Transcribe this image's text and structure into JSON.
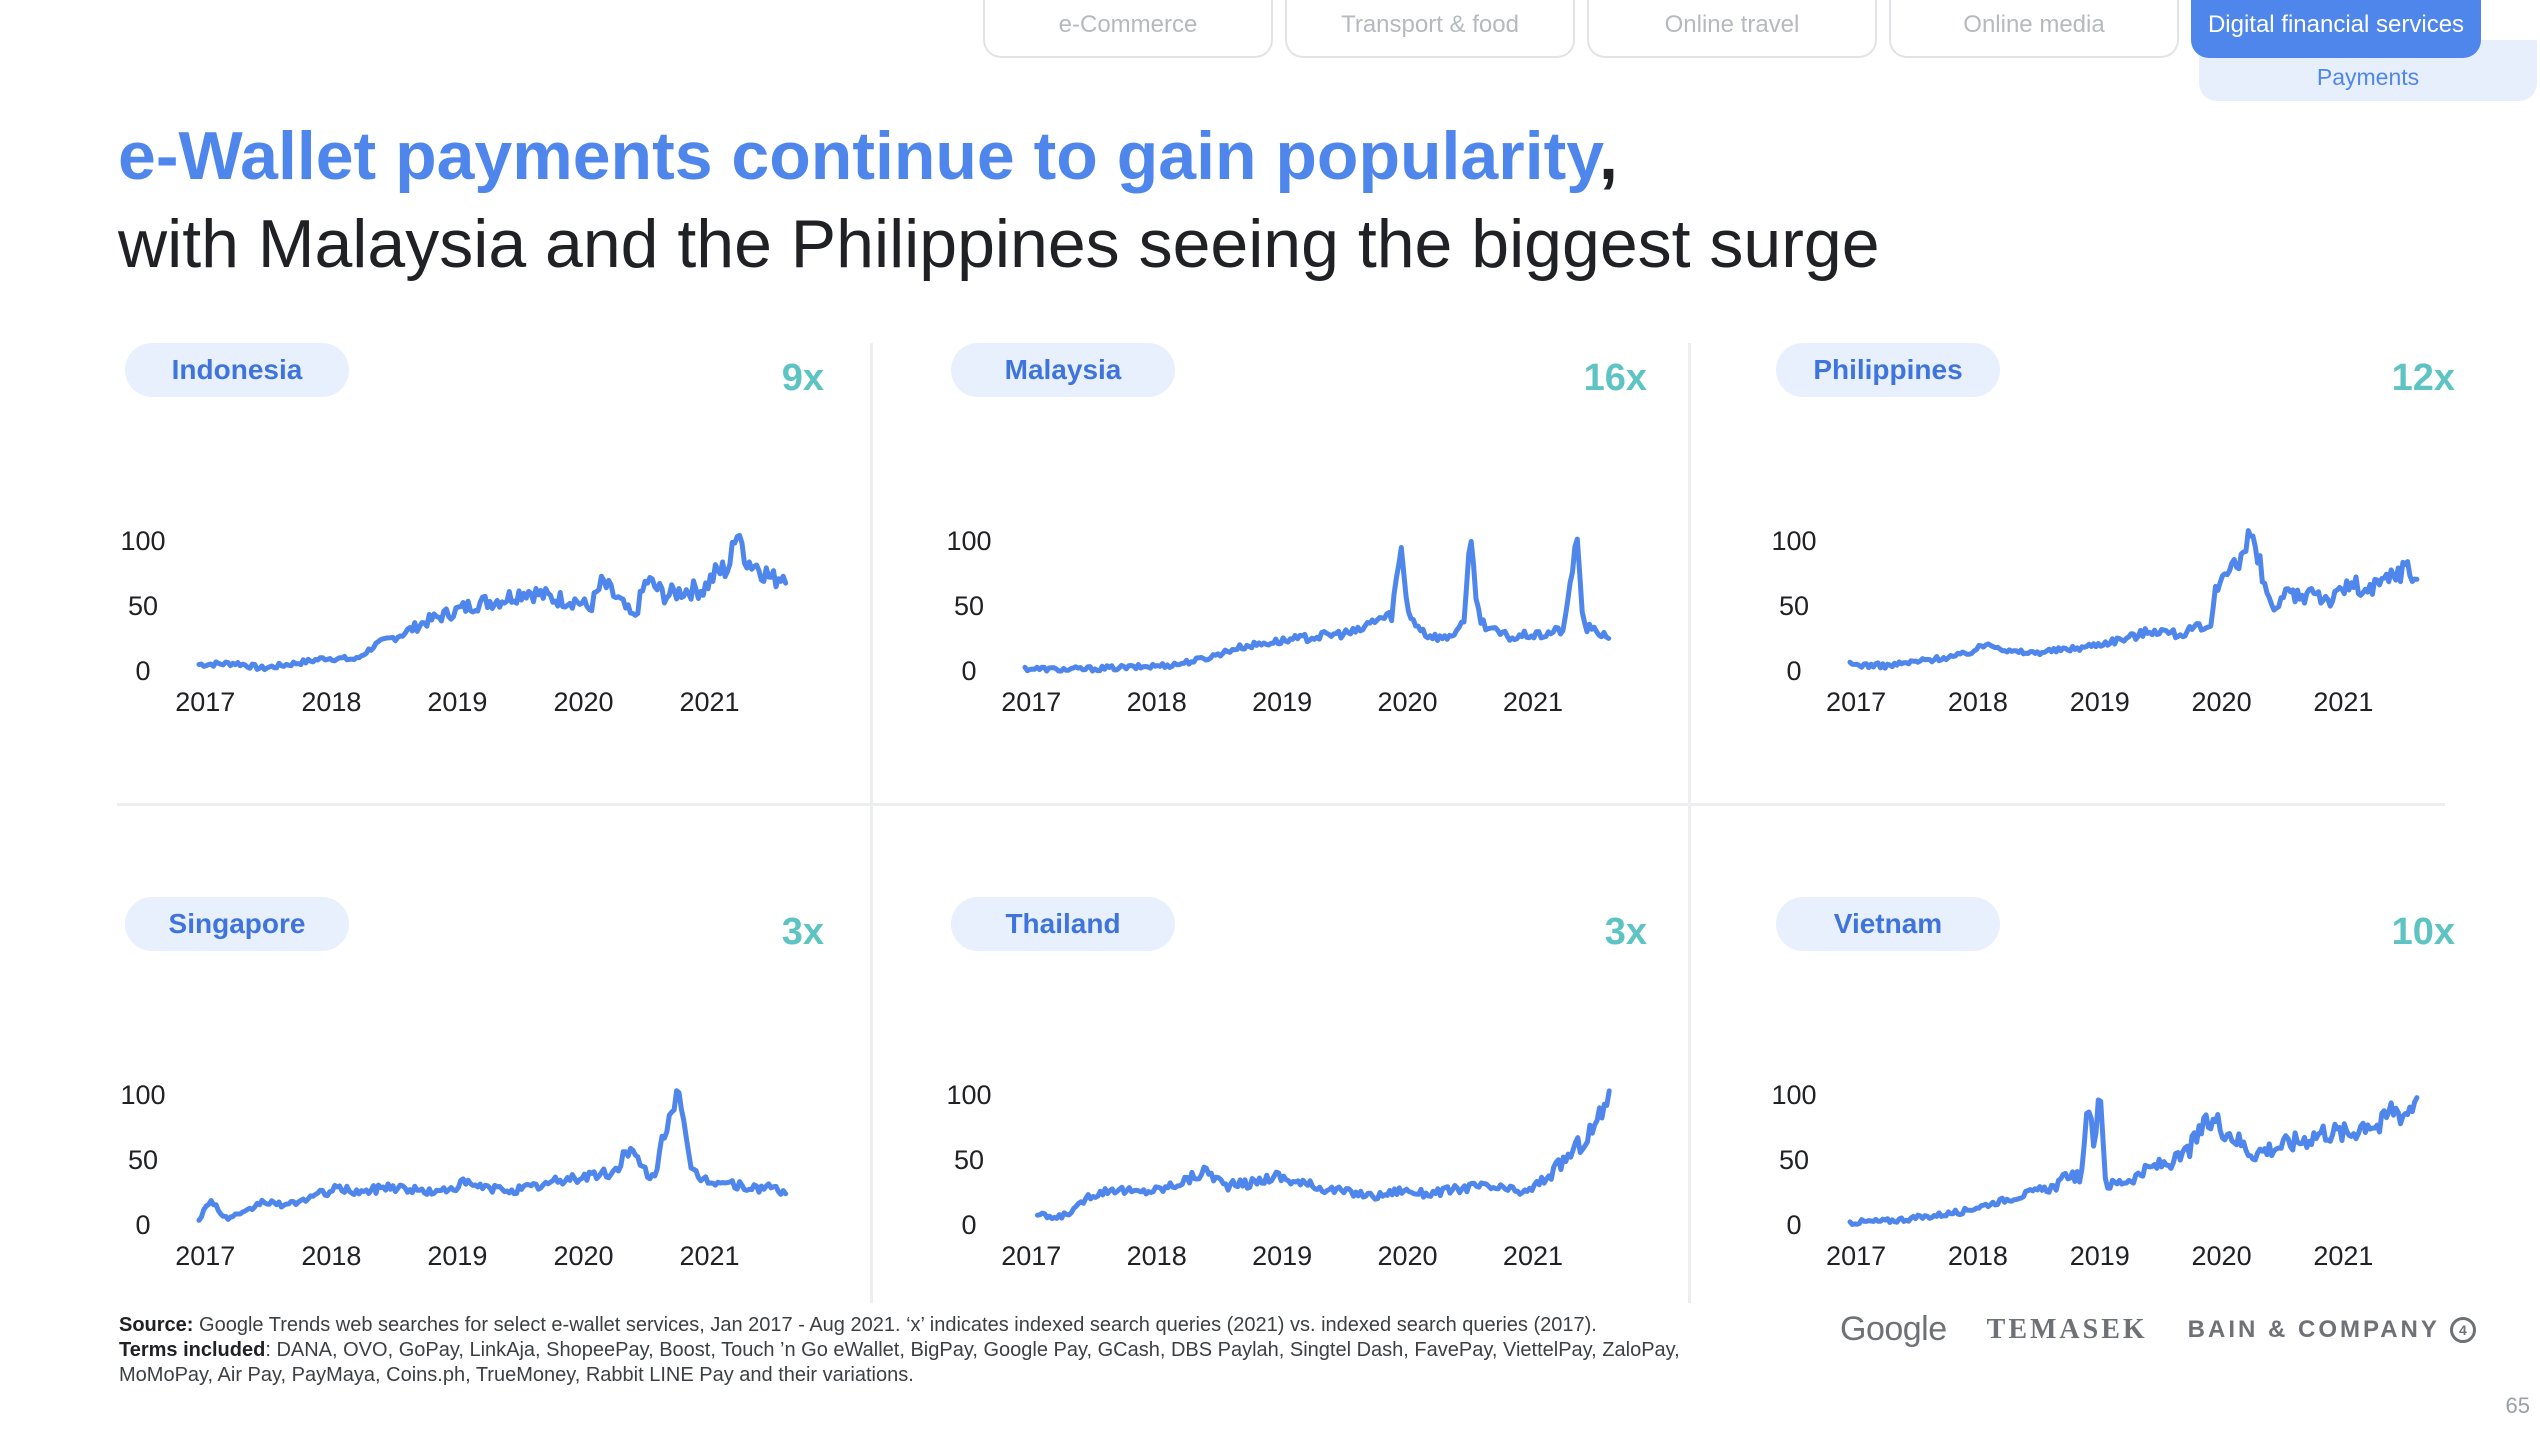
{
  "nav": {
    "tabs": [
      {
        "label": "e-Commerce"
      },
      {
        "label": "Transport & food"
      },
      {
        "label": "Online travel"
      },
      {
        "label": "Online media"
      },
      {
        "label": "Digital financial services"
      }
    ],
    "active_index": 4,
    "subtab_label": "Payments"
  },
  "title": {
    "highlight": "e-Wallet payments continue to gain popularity",
    "comma": ",",
    "line2": "with Malaysia and the Philippines seeing the biggest surge"
  },
  "colors": {
    "accent": "#4f86ec",
    "growth": "#5ec3c3",
    "pill_bg": "#e8f0fd"
  },
  "chart_data": [
    {
      "type": "line",
      "country": "Indonesia",
      "growth": "9x",
      "ylim": [
        0,
        100
      ],
      "yticks": [
        0,
        50,
        100
      ],
      "xticks": [
        2017,
        2018,
        2019,
        2020,
        2021
      ],
      "x_start": 2017.0,
      "x_end": 2021.67,
      "series": [
        {
          "anchors": [
            [
              2017.0,
              5
            ],
            [
              2017.3,
              6
            ],
            [
              2017.5,
              2
            ],
            [
              2017.7,
              5
            ],
            [
              2017.9,
              8
            ],
            [
              2018.0,
              10
            ],
            [
              2018.25,
              9
            ],
            [
              2018.4,
              20
            ],
            [
              2018.6,
              28
            ],
            [
              2018.8,
              38
            ],
            [
              2019.0,
              45
            ],
            [
              2019.2,
              52
            ],
            [
              2019.4,
              55
            ],
            [
              2019.6,
              62
            ],
            [
              2019.8,
              56
            ],
            [
              2020.0,
              54
            ],
            [
              2020.1,
              48
            ],
            [
              2020.2,
              68
            ],
            [
              2020.35,
              52
            ],
            [
              2020.45,
              40
            ],
            [
              2020.55,
              70
            ],
            [
              2020.7,
              58
            ],
            [
              2020.85,
              62
            ],
            [
              2021.0,
              63
            ],
            [
              2021.1,
              75
            ],
            [
              2021.2,
              80
            ],
            [
              2021.28,
              107
            ],
            [
              2021.35,
              85
            ],
            [
              2021.45,
              80
            ],
            [
              2021.55,
              70
            ],
            [
              2021.67,
              77
            ]
          ]
        }
      ]
    },
    {
      "type": "line",
      "country": "Malaysia",
      "growth": "16x",
      "ylim": [
        0,
        100
      ],
      "yticks": [
        0,
        50,
        100
      ],
      "xticks": [
        2017,
        2018,
        2019,
        2020,
        2021
      ],
      "x_start": 2017.0,
      "x_end": 2021.67,
      "series": [
        {
          "anchors": [
            [
              2017.0,
              2
            ],
            [
              2017.3,
              1
            ],
            [
              2017.6,
              2
            ],
            [
              2017.9,
              3
            ],
            [
              2018.2,
              5
            ],
            [
              2018.45,
              10
            ],
            [
              2018.7,
              18
            ],
            [
              2018.95,
              22
            ],
            [
              2019.2,
              25
            ],
            [
              2019.45,
              28
            ],
            [
              2019.65,
              30
            ],
            [
              2019.8,
              40
            ],
            [
              2019.92,
              42
            ],
            [
              2020.0,
              95
            ],
            [
              2020.05,
              45
            ],
            [
              2020.2,
              28
            ],
            [
              2020.35,
              25
            ],
            [
              2020.5,
              35
            ],
            [
              2020.55,
              107
            ],
            [
              2020.62,
              40
            ],
            [
              2020.75,
              30
            ],
            [
              2020.9,
              25
            ],
            [
              2021.0,
              28
            ],
            [
              2021.1,
              27
            ],
            [
              2021.2,
              30
            ],
            [
              2021.3,
              32
            ],
            [
              2021.4,
              107
            ],
            [
              2021.45,
              35
            ],
            [
              2021.55,
              30
            ],
            [
              2021.67,
              27
            ]
          ]
        }
      ]
    },
    {
      "type": "line",
      "country": "Philippines",
      "growth": "12x",
      "ylim": [
        0,
        100
      ],
      "yticks": [
        0,
        50,
        100
      ],
      "xticks": [
        2017,
        2018,
        2019,
        2020,
        2021
      ],
      "x_start": 2017.0,
      "x_end": 2021.67,
      "series": [
        {
          "anchors": [
            [
              2017.0,
              5
            ],
            [
              2017.3,
              4
            ],
            [
              2017.6,
              8
            ],
            [
              2017.9,
              12
            ],
            [
              2018.0,
              15
            ],
            [
              2018.15,
              22
            ],
            [
              2018.3,
              15
            ],
            [
              2018.5,
              14
            ],
            [
              2018.7,
              16
            ],
            [
              2018.9,
              18
            ],
            [
              2019.1,
              22
            ],
            [
              2019.3,
              26
            ],
            [
              2019.5,
              32
            ],
            [
              2019.7,
              28
            ],
            [
              2019.85,
              33
            ],
            [
              2019.95,
              30
            ],
            [
              2020.0,
              60
            ],
            [
              2020.1,
              85
            ],
            [
              2020.2,
              80
            ],
            [
              2020.3,
              107
            ],
            [
              2020.4,
              65
            ],
            [
              2020.5,
              45
            ],
            [
              2020.6,
              60
            ],
            [
              2020.7,
              55
            ],
            [
              2020.8,
              65
            ],
            [
              2020.9,
              55
            ],
            [
              2021.0,
              57
            ],
            [
              2021.1,
              68
            ],
            [
              2021.25,
              60
            ],
            [
              2021.4,
              70
            ],
            [
              2021.55,
              80
            ],
            [
              2021.67,
              70
            ]
          ]
        }
      ]
    },
    {
      "type": "line",
      "country": "Singapore",
      "growth": "3x",
      "ylim": [
        0,
        100
      ],
      "yticks": [
        0,
        50,
        100
      ],
      "xticks": [
        2017,
        2018,
        2019,
        2020,
        2021
      ],
      "x_start": 2017.0,
      "x_end": 2021.67,
      "series": [
        {
          "anchors": [
            [
              2017.0,
              5
            ],
            [
              2017.1,
              20
            ],
            [
              2017.2,
              5
            ],
            [
              2017.35,
              8
            ],
            [
              2017.5,
              18
            ],
            [
              2017.7,
              15
            ],
            [
              2017.9,
              22
            ],
            [
              2018.1,
              28
            ],
            [
              2018.3,
              25
            ],
            [
              2018.5,
              30
            ],
            [
              2018.7,
              27
            ],
            [
              2018.9,
              25
            ],
            [
              2019.1,
              32
            ],
            [
              2019.3,
              28
            ],
            [
              2019.5,
              27
            ],
            [
              2019.7,
              30
            ],
            [
              2019.9,
              35
            ],
            [
              2020.1,
              38
            ],
            [
              2020.3,
              40
            ],
            [
              2020.4,
              60
            ],
            [
              2020.5,
              45
            ],
            [
              2020.6,
              35
            ],
            [
              2020.7,
              75
            ],
            [
              2020.8,
              107
            ],
            [
              2020.9,
              40
            ],
            [
              2021.0,
              35
            ],
            [
              2021.2,
              32
            ],
            [
              2021.4,
              28
            ],
            [
              2021.55,
              30
            ],
            [
              2021.67,
              22
            ]
          ]
        }
      ]
    },
    {
      "type": "line",
      "country": "Thailand",
      "growth": "3x",
      "ylim": [
        0,
        100
      ],
      "yticks": [
        0,
        50,
        100
      ],
      "xticks": [
        2017,
        2018,
        2019,
        2020,
        2021
      ],
      "x_start": 2017.1,
      "x_end": 2021.67,
      "series": [
        {
          "anchors": [
            [
              2017.1,
              8
            ],
            [
              2017.25,
              5
            ],
            [
              2017.4,
              12
            ],
            [
              2017.5,
              22
            ],
            [
              2017.7,
              28
            ],
            [
              2017.9,
              25
            ],
            [
              2018.1,
              28
            ],
            [
              2018.3,
              35
            ],
            [
              2018.45,
              42
            ],
            [
              2018.6,
              30
            ],
            [
              2018.8,
              32
            ],
            [
              2019.0,
              38
            ],
            [
              2019.2,
              32
            ],
            [
              2019.4,
              28
            ],
            [
              2019.6,
              25
            ],
            [
              2019.8,
              22
            ],
            [
              2020.0,
              27
            ],
            [
              2020.2,
              24
            ],
            [
              2020.4,
              27
            ],
            [
              2020.6,
              30
            ],
            [
              2020.8,
              28
            ],
            [
              2021.0,
              25
            ],
            [
              2021.2,
              40
            ],
            [
              2021.35,
              55
            ],
            [
              2021.5,
              70
            ],
            [
              2021.6,
              85
            ],
            [
              2021.67,
              107
            ]
          ]
        }
      ]
    },
    {
      "type": "line",
      "country": "Vietnam",
      "growth": "10x",
      "ylim": [
        0,
        100
      ],
      "yticks": [
        0,
        50,
        100
      ],
      "xticks": [
        2017,
        2018,
        2019,
        2020,
        2021
      ],
      "x_start": 2017.0,
      "x_end": 2021.67,
      "series": [
        {
          "anchors": [
            [
              2017.0,
              2
            ],
            [
              2017.3,
              3
            ],
            [
              2017.6,
              6
            ],
            [
              2017.9,
              10
            ],
            [
              2018.1,
              15
            ],
            [
              2018.3,
              20
            ],
            [
              2018.5,
              25
            ],
            [
              2018.7,
              30
            ],
            [
              2018.8,
              40
            ],
            [
              2018.9,
              35
            ],
            [
              2018.95,
              95
            ],
            [
              2019.0,
              60
            ],
            [
              2019.05,
              107
            ],
            [
              2019.1,
              30
            ],
            [
              2019.3,
              35
            ],
            [
              2019.5,
              45
            ],
            [
              2019.7,
              50
            ],
            [
              2019.8,
              60
            ],
            [
              2019.9,
              75
            ],
            [
              2020.0,
              80
            ],
            [
              2020.15,
              68
            ],
            [
              2020.3,
              55
            ],
            [
              2020.5,
              60
            ],
            [
              2020.7,
              65
            ],
            [
              2020.9,
              72
            ],
            [
              2021.1,
              70
            ],
            [
              2021.25,
              80
            ],
            [
              2021.35,
              75
            ],
            [
              2021.45,
              90
            ],
            [
              2021.55,
              85
            ],
            [
              2021.67,
              100
            ]
          ]
        }
      ]
    }
  ],
  "footer": {
    "source_label": "Source:",
    "source_text": " Google Trends web searches for select e-wallet services, Jan 2017 - Aug 2021. ‘x’ indicates indexed search queries (2021) vs. indexed search queries (2017).",
    "terms_label": "Terms included",
    "terms_text": ": DANA, OVO, GoPay, LinkAja, ShopeePay, Boost, Touch ’n Go eWallet, BigPay, Google Pay, GCash, DBS Paylah, Singtel Dash, FavePay, ViettelPay, ZaloPay, MoMoPay, Air Pay, PayMaya, Coins.ph, TrueMoney, Rabbit LINE Pay and their variations."
  },
  "logos": {
    "google": "Google",
    "temasek": "TEMASEK",
    "bain": "BAIN & COMPANY",
    "bain_mark": "4"
  },
  "page_number": "65"
}
